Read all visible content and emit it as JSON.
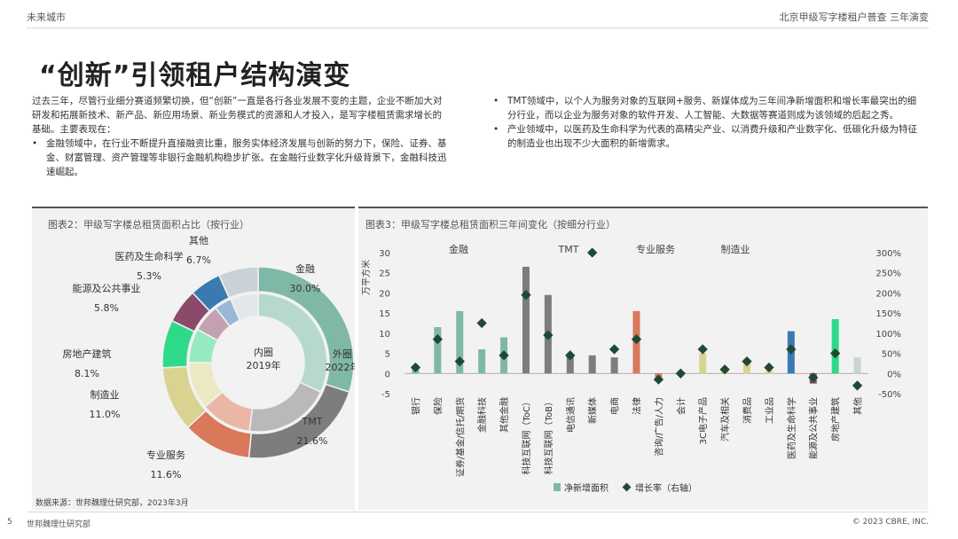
{
  "header": {
    "left": "未来城市",
    "right": "北京甲级写字楼租户普查 三年演变"
  },
  "title": "“创新”引领租户结构演变",
  "intro": "过去三年，尽管行业细分赛道频繁切换，但“创新”一直是各行各业发展不变的主题，企业不断加大对研发和拓展新技术、新产品、新应用场景、新业务模式的资源和人才投入，是写字楼租赁需求增长的基础。主要表现在：",
  "bullets_left": [
    "金融领域中，在行业不断提升直接融资比重，服务实体经济发展与创新的努力下，保险、证券、基金、财富管理、资产管理等非银行金融机构稳步扩张。在金融行业数字化升级背景下，金融科技迅速崛起。"
  ],
  "bullets_right": [
    "TMT领域中，以个人为服务对象的互联网+服务、新媒体成为三年间净新增面积和增长率最突出的细分行业，而以企业为服务对象的软件开发、人工智能、大数据等赛道则成为该领域的后起之秀。",
    "产业领域中，以医药及生命科学为代表的高精尖产业、以消费升级和产业数字化、低碳化升级为特征的制造业也出现不少大面积的新增需求。"
  ],
  "bullet_symbol": "•",
  "chart2": {
    "title": "图表2：甲级写字楼总租赁面积占比（按行业）",
    "center_inner": "内圈",
    "center_inner_year": "2019年",
    "outer_label": "外圈",
    "outer_year": "2022年"
  },
  "chart3": {
    "title": "图表3：甲级写字楼总租赁面积三年间变化（按细分行业）",
    "y_left_label": "万平方米",
    "legend_bar": "净新增面积",
    "legend_point": "增长率（右轴）",
    "group_labels": [
      "金融",
      "TMT",
      "专业服务",
      "制造业"
    ]
  },
  "source": "数据来源：世邦魏理仕研究部，2023年3月",
  "footer": {
    "page": "5",
    "left": "世邦魏理仕研究部",
    "right": "© 2023 CBRE, INC."
  },
  "chart_data": [
    {
      "type": "pie",
      "variant": "double-donut",
      "categories": [
        "金融",
        "TMT",
        "专业服务",
        "制造业",
        "房地产建筑",
        "能源及公共事业",
        "医药及生命科学",
        "其他"
      ],
      "outer_values": [
        30.0,
        21.6,
        11.6,
        11.0,
        8.1,
        5.8,
        5.3,
        6.7
      ],
      "outer_labels": [
        "30.0%",
        "21.6%",
        "11.6%",
        "11.0%",
        "8.1%",
        "5.8%",
        "5.3%",
        "6.7%"
      ],
      "inner_values": [
        32.0,
        20.0,
        12.0,
        11.0,
        8.0,
        6.5,
        4.0,
        6.5
      ],
      "colors": [
        "#7fb8a6",
        "#7d7d7d",
        "#d9785a",
        "#d9d392",
        "#2fd98a",
        "#8a4a6a",
        "#3a7ab0",
        "#c9d2d6"
      ],
      "inner_colors": [
        "#b7d9cd",
        "#b9b9b9",
        "#eab7a6",
        "#ece8c4",
        "#96eabf",
        "#c2a2b2",
        "#98b8d6",
        "#e2e8ea"
      ]
    },
    {
      "type": "bar",
      "categories": [
        "银行",
        "保险",
        "证券/基金/信托/期货",
        "金融科技",
        "其他金融",
        "科技互联网（ToC）",
        "科技互联网（ToB）",
        "电信通讯",
        "新媒体",
        "电商",
        "法律",
        "咨询/广告/人力",
        "会计",
        "3C电子产品",
        "汽车及相关",
        "消费品",
        "工业品",
        "医药及生命科学",
        "能源及公共事业",
        "房地产建筑",
        "其他"
      ],
      "series": [
        {
          "name": "净新增面积",
          "axis": "left",
          "values": [
            1.0,
            11.5,
            15.5,
            6.0,
            9.0,
            26.5,
            19.5,
            4.5,
            4.5,
            4.0,
            15.5,
            -2.0,
            0.0,
            5.0,
            1.0,
            2.5,
            1.0,
            10.5,
            -2.5,
            13.5,
            4.0
          ]
        },
        {
          "name": "增长率（右轴）",
          "axis": "right",
          "values": [
            15,
            85,
            30,
            125,
            45,
            195,
            95,
            45,
            300,
            60,
            85,
            -15,
            0,
            60,
            10,
            30,
            15,
            60,
            -10,
            50,
            -30
          ]
        }
      ],
      "bar_colors": [
        "#7fb8a6",
        "#7fb8a6",
        "#7fb8a6",
        "#7fb8a6",
        "#7fb8a6",
        "#7d7d7d",
        "#7d7d7d",
        "#7d7d7d",
        "#7d7d7d",
        "#7d7d7d",
        "#d9785a",
        "#d9785a",
        "#d9785a",
        "#d9d392",
        "#d9d392",
        "#d9d392",
        "#d9d392",
        "#3a7ab0",
        "#8a4a6a",
        "#2fd98a",
        "#c9d2d6"
      ],
      "point_color": "#1f4a32",
      "ylim_left": [
        -5,
        30
      ],
      "ylim_right": [
        -50,
        300
      ],
      "yticks_left": [
        -5,
        0,
        5,
        10,
        15,
        20,
        25,
        30
      ],
      "yticks_right": [
        "-50%",
        "0%",
        "50%",
        "100%",
        "150%",
        "200%",
        "250%",
        "300%"
      ]
    }
  ]
}
